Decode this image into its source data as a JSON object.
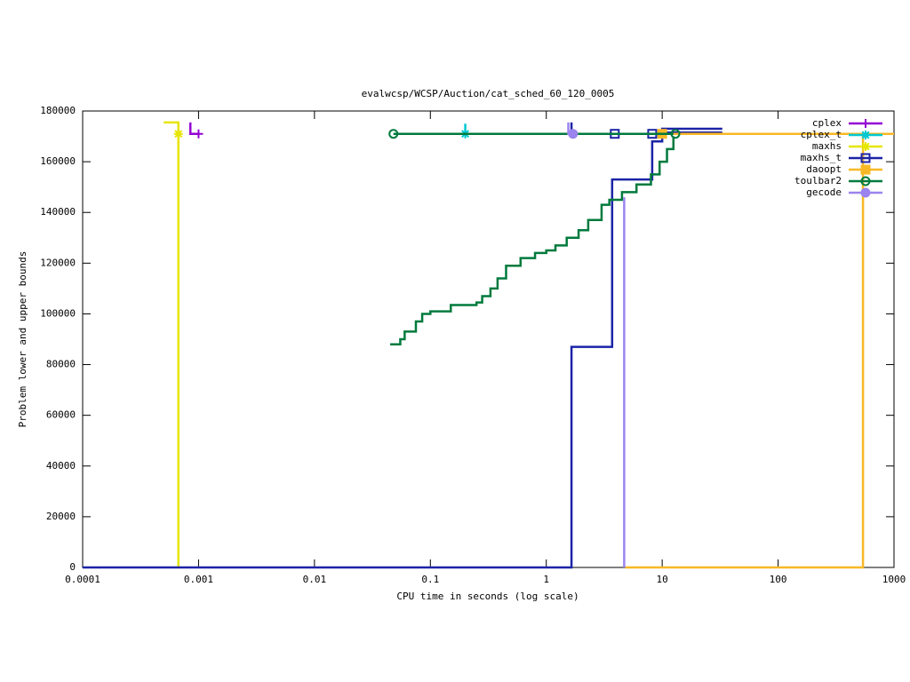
{
  "chart_data": {
    "type": "line",
    "title": "evalwcsp/WCSP/Auction/cat_sched_60_120_0005",
    "xlabel": "CPU time in seconds (log scale)",
    "ylabel": "Problem lower and upper bounds",
    "xlog": true,
    "xlim": [
      0.0001,
      1000
    ],
    "xticks": [
      0.0001,
      0.001,
      0.01,
      0.1,
      1,
      10,
      100,
      1000
    ],
    "ylim": [
      0,
      180000
    ],
    "yticks": [
      0,
      20000,
      40000,
      60000,
      80000,
      100000,
      120000,
      140000,
      160000,
      180000
    ],
    "legend": "top-right",
    "series": [
      {
        "name": "cplex",
        "color": "#9400d3",
        "marker": "plus",
        "x": [
          0.00085,
          0.00085,
          0.001
        ],
        "values": [
          175500,
          171000,
          171000
        ],
        "marker_x": [
          0.001
        ],
        "marker_values": [
          171000
        ]
      },
      {
        "name": "cplex_t",
        "color": "#00c8d2",
        "marker": "star",
        "x": [
          0.2,
          0.2
        ],
        "values": [
          175000,
          171000
        ],
        "marker_x": [
          0.2
        ],
        "marker_values": [
          171000
        ]
      },
      {
        "name": "maxhs",
        "color": "#e6e600",
        "marker": "star",
        "x": [
          0.0005,
          0.00067,
          0.00067
        ],
        "values": [
          175500,
          175500,
          0
        ],
        "marker_x": [
          0.00067
        ],
        "marker_values": [
          171000
        ]
      },
      {
        "name": "maxhs_t",
        "color": "#1c24a6",
        "marker": "square",
        "x": [
          0.0001,
          1.65,
          1.65,
          3.7,
          3.7,
          8.2,
          8.2,
          10,
          10,
          33,
          null,
          1.65,
          1.65,
          3.9,
          null,
          10,
          33
        ],
        "values": [
          0,
          0,
          87000,
          87000,
          153000,
          153000,
          168000,
          168000,
          173000,
          173000,
          null,
          175500,
          171000,
          171000,
          null,
          171500,
          171500
        ],
        "marker_x": [
          3.9,
          8.2
        ],
        "marker_values": [
          171000,
          171000
        ]
      },
      {
        "name": "daoopt",
        "color": "#f8b826",
        "marker": "filled-square",
        "x": [
          4.8,
          540,
          540,
          null,
          9.5,
          1000
        ],
        "values": [
          0,
          0,
          171000,
          null,
          171000,
          171000
        ],
        "marker_x": [
          10
        ],
        "marker_values": [
          171000
        ]
      },
      {
        "name": "toulbar2",
        "color": "#007a3d",
        "marker": "circle",
        "x": [
          0.048,
          12.5,
          null,
          0.045,
          0.055,
          0.06,
          0.075,
          0.085,
          0.1,
          0.15,
          0.25,
          0.28,
          0.33,
          0.38,
          0.45,
          0.6,
          0.8,
          1.0,
          1.2,
          1.5,
          1.9,
          2.3,
          3.0,
          3.5,
          4.5,
          6,
          8,
          9.5,
          11,
          12.5
        ],
        "values": [
          171000,
          171000,
          null,
          88000,
          90000,
          93000,
          97000,
          100000,
          101000,
          103500,
          104500,
          107000,
          110000,
          114000,
          119000,
          122000,
          124000,
          125000,
          127000,
          130000,
          133000,
          137000,
          143000,
          145000,
          148000,
          151000,
          155000,
          160000,
          165000,
          170000
        ],
        "marker_x": [
          0.048,
          13
        ],
        "marker_values": [
          171000,
          171000
        ]
      },
      {
        "name": "gecode",
        "color": "#9b84ee",
        "marker": "filled-circle",
        "x": [
          1.55,
          1.55,
          1.7,
          null,
          4.7,
          4.7
        ],
        "values": [
          175500,
          171000,
          171000,
          null,
          146000,
          0
        ],
        "marker_x": [
          1.7
        ],
        "marker_values": [
          171000
        ]
      }
    ]
  }
}
